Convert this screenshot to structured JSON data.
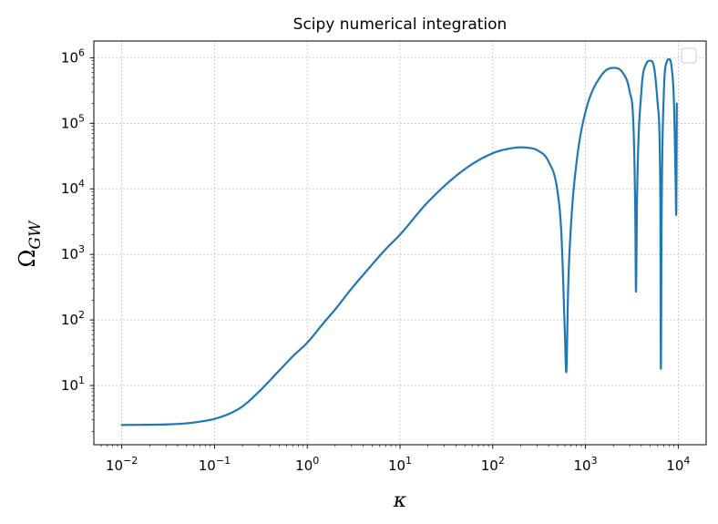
{
  "chart_data": {
    "type": "line",
    "title": "Scipy numerical integration",
    "xlabel": "κ",
    "ylabel": "Ω",
    "ylabel_subscript": "GW",
    "x_scale": "log",
    "y_scale": "log",
    "xlim": [
      0.005,
      20000
    ],
    "ylim": [
      1.25,
      1800000
    ],
    "x_ticks": [
      {
        "value": 0.01,
        "base": "10",
        "exp": "−2"
      },
      {
        "value": 0.1,
        "base": "10",
        "exp": "−1"
      },
      {
        "value": 1,
        "base": "10",
        "exp": "0"
      },
      {
        "value": 10,
        "base": "10",
        "exp": "1"
      },
      {
        "value": 100,
        "base": "10",
        "exp": "2"
      },
      {
        "value": 1000,
        "base": "10",
        "exp": "3"
      },
      {
        "value": 10000,
        "base": "10",
        "exp": "4"
      }
    ],
    "y_ticks": [
      {
        "value": 10,
        "base": "10",
        "exp": "1"
      },
      {
        "value": 100,
        "base": "10",
        "exp": "2"
      },
      {
        "value": 1000,
        "base": "10",
        "exp": "3"
      },
      {
        "value": 10000,
        "base": "10",
        "exp": "4"
      },
      {
        "value": 100000,
        "base": "10",
        "exp": "5"
      },
      {
        "value": 1000000,
        "base": "10",
        "exp": "6"
      }
    ],
    "grid": true,
    "legend": "top-right",
    "color": "#1f77b4",
    "series": [
      {
        "x": [
          0.01,
          0.03,
          0.05,
          0.08,
          0.1,
          0.15,
          0.2,
          0.3,
          0.5,
          0.7,
          1,
          1.5,
          2,
          3,
          5,
          7,
          10,
          20,
          50,
          100,
          150,
          200,
          250,
          300,
          400,
          500,
          550,
          600,
          620,
          650,
          700,
          800,
          1000,
          1500,
          2000,
          2500,
          3000,
          3300,
          3450,
          3500,
          3600,
          4000,
          4500,
          5000,
          5500,
          6000,
          6400,
          6500,
          6600,
          7000,
          7500,
          8000,
          8500,
          9000,
          9400,
          9500,
          9600,
          9650
        ],
        "y": [
          2.5,
          2.55,
          2.65,
          2.9,
          3.1,
          3.8,
          4.8,
          8,
          17,
          28,
          45,
          90,
          145,
          300,
          700,
          1200,
          2000,
          6300,
          20000,
          35000,
          41000,
          43000,
          42000,
          39000,
          26000,
          9000,
          2000,
          60,
          16,
          300,
          3000,
          25000,
          150000,
          550000,
          700000,
          600000,
          300000,
          80000,
          3000,
          270,
          8000,
          300000,
          800000,
          900000,
          700000,
          200000,
          10000,
          18,
          2000,
          300000,
          850000,
          950000,
          700000,
          200000,
          10000,
          4000,
          30000,
          200000
        ]
      }
    ]
  }
}
